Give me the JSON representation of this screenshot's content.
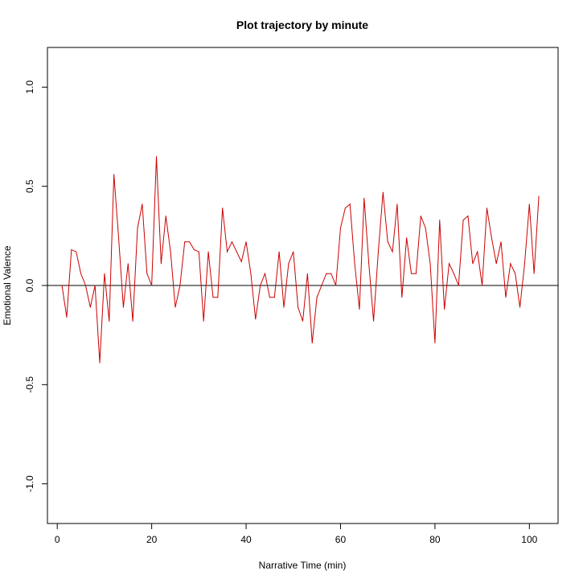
{
  "chart_data": {
    "type": "line",
    "title": "Plot trajectory by minute",
    "xlabel": "Narrative Time (min)",
    "ylabel": "Emotional Valence",
    "xlim": [
      -2.08,
      106.08
    ],
    "ylim": [
      -1.2,
      1.2
    ],
    "x_ticks": [
      0,
      20,
      40,
      60,
      80,
      100
    ],
    "y_ticks": [
      -1.0,
      -0.5,
      0.0,
      0.5,
      1.0
    ],
    "x_tick_labels": [
      "0",
      "20",
      "40",
      "60",
      "80",
      "100"
    ],
    "y_tick_labels": [
      "-1.0",
      "-0.5",
      "0.0",
      "0.5",
      "1.0"
    ],
    "reference_line": 0,
    "grid": false,
    "colors": {
      "series": "#cc0000",
      "reference": "#000000",
      "axis": "#000000"
    },
    "series": [
      {
        "x": [
          1,
          2,
          3,
          4,
          5,
          6,
          7,
          8,
          9,
          10,
          11,
          12,
          13,
          14,
          15,
          16,
          17,
          18,
          19,
          20,
          21,
          22,
          23,
          24,
          25,
          26,
          27,
          28,
          29,
          30,
          31,
          32,
          33,
          34,
          35,
          36,
          37,
          38,
          39,
          40,
          41,
          42,
          43,
          44,
          45,
          46,
          47,
          48,
          49,
          50,
          51,
          52,
          53,
          54,
          55,
          56,
          57,
          58,
          59,
          60,
          61,
          62,
          63,
          64,
          65,
          66,
          67,
          68,
          69,
          70,
          71,
          72,
          73,
          74,
          75,
          76,
          77,
          78,
          79,
          80,
          81,
          82,
          83,
          84,
          85,
          86,
          87,
          88,
          89,
          90,
          91,
          92,
          93,
          94,
          95,
          96,
          97,
          98,
          99,
          100,
          101,
          102
        ],
        "values": [
          0.0,
          -0.16,
          0.18,
          0.17,
          0.06,
          0.0,
          -0.11,
          0.0,
          -0.39,
          0.06,
          -0.18,
          0.56,
          0.24,
          -0.11,
          0.11,
          -0.18,
          0.29,
          0.41,
          0.06,
          0.0,
          0.65,
          0.11,
          0.35,
          0.17,
          -0.11,
          0.0,
          0.22,
          0.22,
          0.18,
          0.17,
          -0.18,
          0.17,
          -0.06,
          -0.06,
          0.39,
          0.17,
          0.22,
          0.17,
          0.12,
          0.22,
          0.06,
          -0.17,
          0.0,
          0.06,
          -0.06,
          -0.06,
          0.17,
          -0.11,
          0.11,
          0.17,
          -0.11,
          -0.18,
          0.06,
          -0.29,
          -0.06,
          0.0,
          0.06,
          0.06,
          0.0,
          0.29,
          0.39,
          0.41,
          0.11,
          -0.12,
          0.44,
          0.11,
          -0.18,
          0.17,
          0.47,
          0.22,
          0.17,
          0.41,
          -0.06,
          0.24,
          0.06,
          0.06,
          0.35,
          0.29,
          0.11,
          -0.29,
          0.33,
          -0.12,
          0.11,
          0.06,
          0.0,
          0.33,
          0.35,
          0.11,
          0.17,
          0.0,
          0.39,
          0.24,
          0.11,
          0.22,
          -0.06,
          0.11,
          0.06,
          -0.11,
          0.11,
          0.41,
          0.06,
          0.45
        ]
      }
    ]
  }
}
